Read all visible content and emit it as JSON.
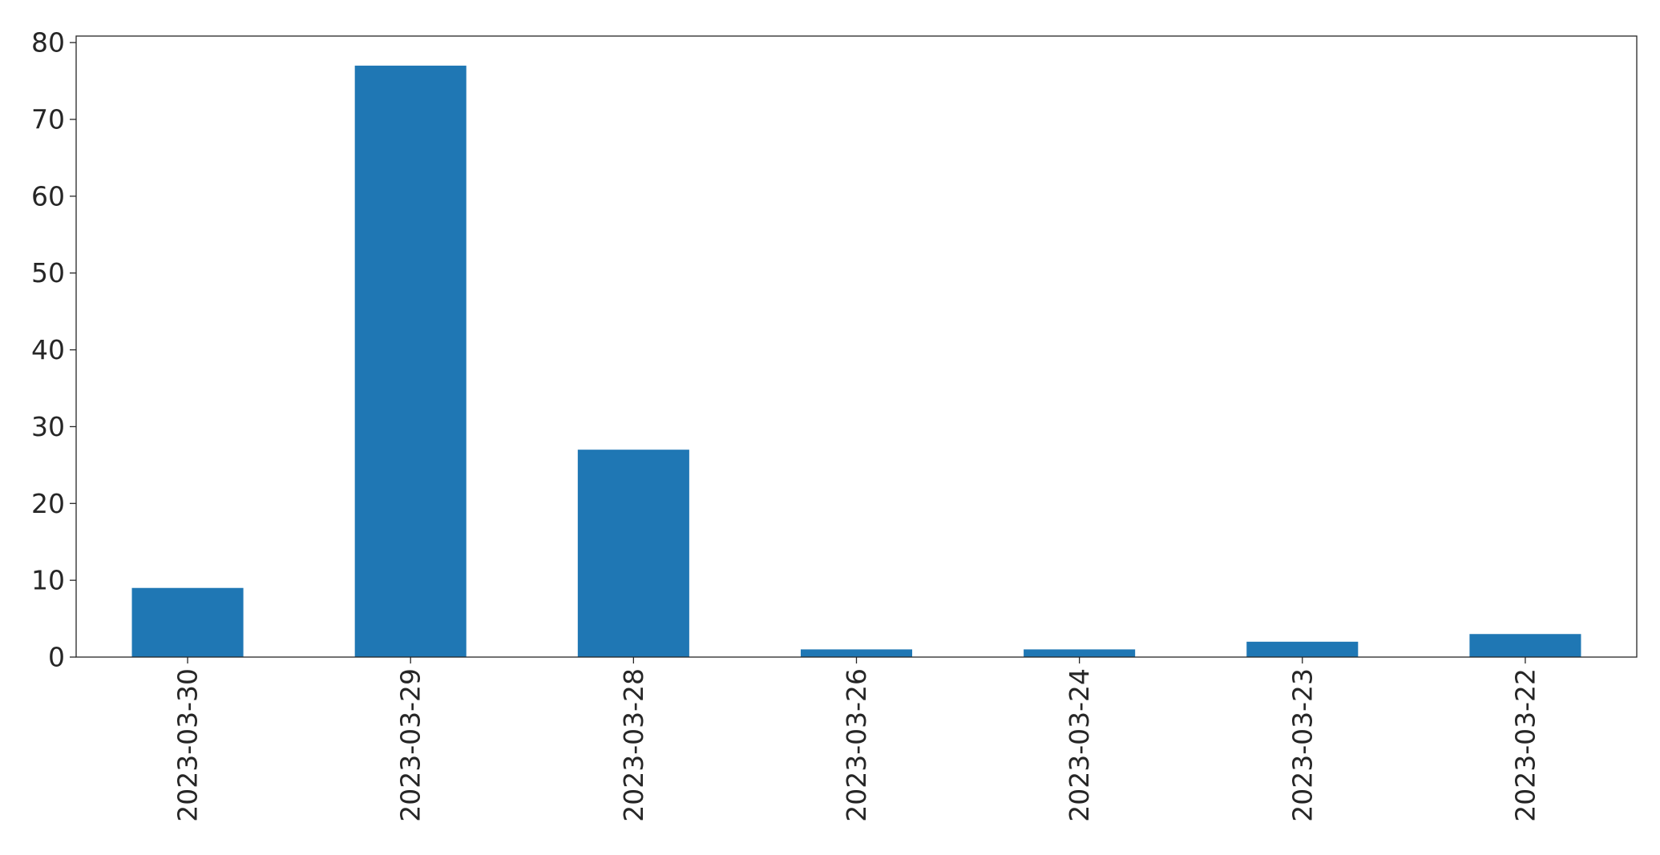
{
  "chart_data": {
    "type": "bar",
    "title": "",
    "xlabel": "",
    "ylabel": "",
    "categories": [
      "2023-03-30",
      "2023-03-29",
      "2023-03-28",
      "2023-03-26",
      "2023-03-24",
      "2023-03-23",
      "2023-03-22"
    ],
    "values": [
      9,
      77,
      27,
      1,
      1,
      2,
      3
    ],
    "ylim": [
      0,
      80.85
    ],
    "yticks": [
      0,
      10,
      20,
      30,
      40,
      50,
      60,
      70,
      80
    ],
    "bar_color": "#1f77b4",
    "grid": false,
    "legend": "none"
  }
}
